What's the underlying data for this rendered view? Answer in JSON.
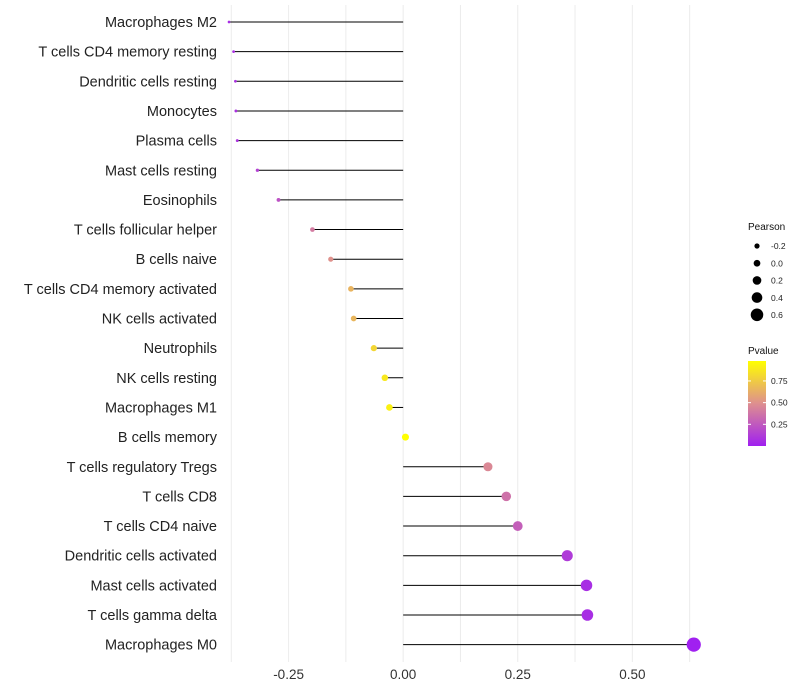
{
  "chart_data": {
    "type": "lollipop",
    "orientation": "horizontal",
    "xlim": [
      -0.38,
      0.7
    ],
    "x_ticks": [
      -0.25,
      0.0,
      0.25,
      0.5
    ],
    "x_tick_labels": [
      "-0.25",
      "0.00",
      "0.25",
      "0.50"
    ],
    "grid": true,
    "legend_position": "right",
    "colors": {
      "high_p": "#FFFF00",
      "mid_p": "#DE8F8F",
      "low_p": "#A020F0",
      "segment": "#000000",
      "grid": "#ECECEC"
    },
    "categories": [
      "Macrophages M2",
      "T cells CD4 memory resting",
      "Dendritic cells resting",
      "Monocytes",
      "Plasma cells",
      "Mast cells resting",
      "Eosinophils",
      "T cells follicular helper",
      "B cells naive",
      "T cells CD4 memory activated",
      "NK cells activated",
      "Neutrophils",
      "NK cells resting",
      "Macrophages M1",
      "B cells memory",
      "T cells regulatory  Tregs ",
      "T cells CD8",
      "T cells CD4 naive",
      "Dendritic cells activated",
      "Mast cells activated",
      "T cells gamma delta",
      "Macrophages M0"
    ],
    "pearson": [
      -0.38,
      -0.37,
      -0.366,
      -0.365,
      -0.362,
      -0.318,
      -0.272,
      -0.198,
      -0.158,
      -0.114,
      -0.108,
      -0.064,
      -0.04,
      -0.03,
      0.005,
      0.185,
      0.225,
      0.25,
      0.358,
      0.4,
      0.402,
      0.634
    ],
    "pvalue": [
      0.06,
      0.07,
      0.08,
      0.08,
      0.09,
      0.15,
      0.22,
      0.4,
      0.5,
      0.65,
      0.66,
      0.8,
      0.88,
      0.92,
      0.98,
      0.46,
      0.36,
      0.28,
      0.12,
      0.06,
      0.06,
      0.001
    ],
    "legend": {
      "size_title": "Pearson",
      "size_values": [
        -0.2,
        0.0,
        0.2,
        0.4,
        0.6
      ],
      "size_labels": [
        "-0.2",
        "0.0",
        "0.2",
        "0.4",
        "0.6"
      ],
      "color_title": "Pvalue",
      "color_breaks": [
        0.75,
        0.5,
        0.25
      ],
      "color_labels": [
        "0.75",
        "0.50",
        "0.25"
      ],
      "color_range": [
        0.0,
        0.98
      ]
    }
  }
}
